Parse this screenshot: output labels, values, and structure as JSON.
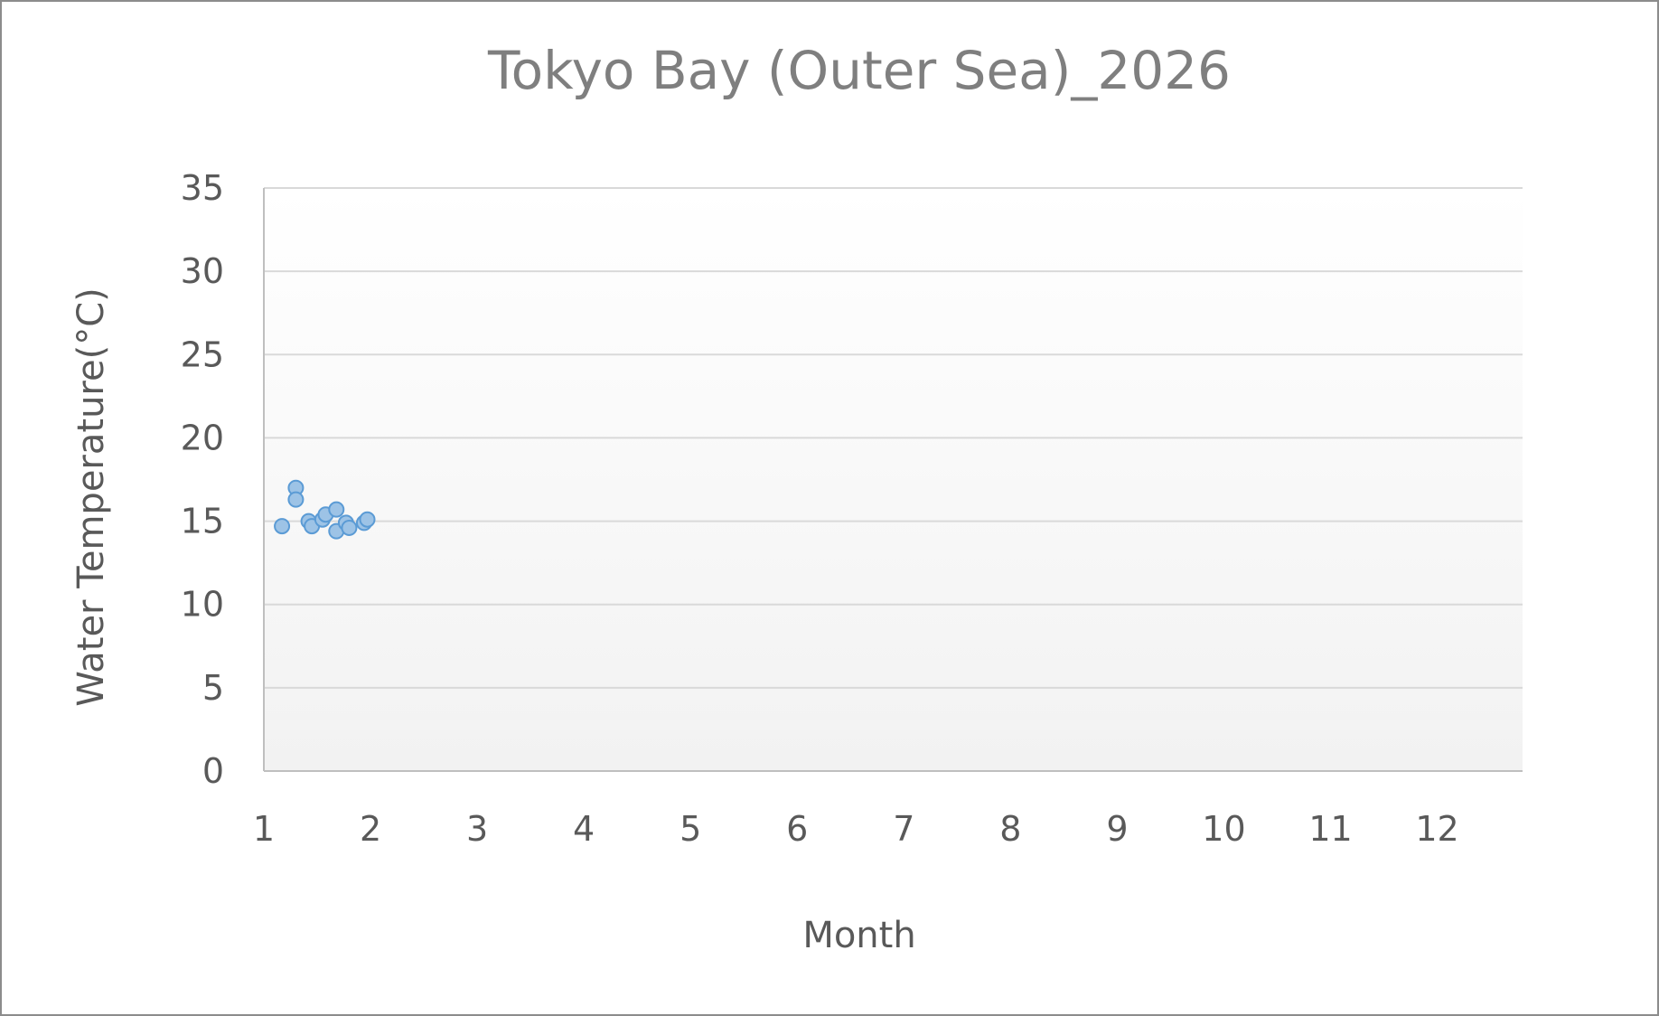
{
  "chart_data": {
    "type": "scatter",
    "title": "Tokyo Bay (Outer Sea)_2026",
    "xlabel": "Month",
    "ylabel": "Water Temperature(°C)",
    "xlim": [
      1,
      12.8
    ],
    "ylim": [
      0,
      35
    ],
    "x_ticks": [
      1,
      2,
      3,
      4,
      5,
      6,
      7,
      8,
      9,
      10,
      11,
      12
    ],
    "y_ticks": [
      0,
      5,
      10,
      15,
      20,
      25,
      30,
      35
    ],
    "grid": true,
    "legend": "none",
    "series": [
      {
        "color": "#9dc3e6",
        "edge_color": "#5b9bd5",
        "points": [
          {
            "x": 1.17,
            "y": 14.7
          },
          {
            "x": 1.3,
            "y": 17.0
          },
          {
            "x": 1.3,
            "y": 16.3
          },
          {
            "x": 1.42,
            "y": 15.0
          },
          {
            "x": 1.45,
            "y": 14.7
          },
          {
            "x": 1.55,
            "y": 15.1
          },
          {
            "x": 1.58,
            "y": 15.4
          },
          {
            "x": 1.68,
            "y": 15.7
          },
          {
            "x": 1.68,
            "y": 14.4
          },
          {
            "x": 1.77,
            "y": 14.9
          },
          {
            "x": 1.8,
            "y": 14.6
          },
          {
            "x": 1.94,
            "y": 14.9
          },
          {
            "x": 1.97,
            "y": 15.1
          }
        ]
      }
    ]
  }
}
